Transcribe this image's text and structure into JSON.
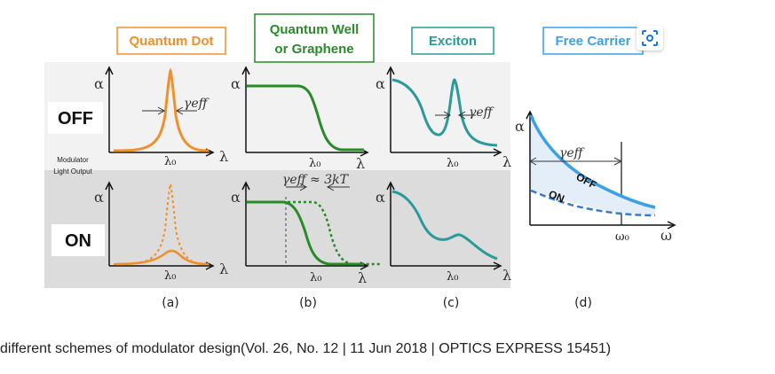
{
  "headers": {
    "quantum_dot": "Quantum Dot",
    "quantum_well_line1": "Quantum Well",
    "quantum_well_line2": "or Graphene",
    "exciton": "Exciton",
    "free_carrier": "Free Carrier"
  },
  "rows": {
    "off": "OFF",
    "on": "ON",
    "modulator_line1": "Modulator",
    "modulator_line2": "Light Output"
  },
  "symbols": {
    "alpha": "α",
    "lambda": "λ",
    "lambda0": "λ₀",
    "omega": "ω",
    "omega0": "ω₀",
    "gamma_eff": "γeff",
    "gamma_eff_kt": "γeff ≈ 3kT",
    "off_curve": "OFF",
    "on_curve": "ON"
  },
  "sublabels": [
    "(a)",
    "(b)",
    "(c)",
    "(d)"
  ],
  "caption": "different schemes of modulator design(Vol. 26, No. 12 | 11 Jun 2018 | OPTICS EXPRESS 15451)",
  "colors": {
    "quantum_dot": "#f0902a",
    "quantum_well": "#2a8a2a",
    "exciton": "#2a9a9a",
    "free_carrier": "#3aa0e8",
    "off_band": "#f2f2f2",
    "on_band": "#dcdcdc"
  },
  "icons": {
    "lens": "lens-search-icon"
  }
}
